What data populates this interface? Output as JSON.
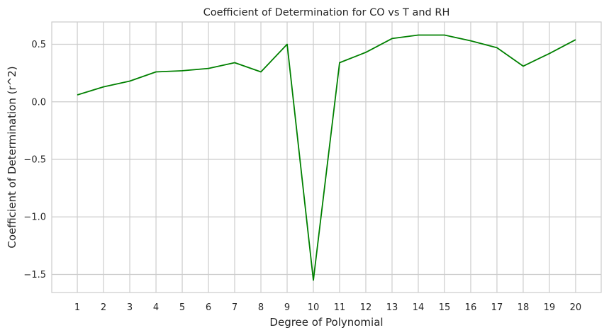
{
  "chart_data": {
    "type": "line",
    "title": "Coefficient of Determination for CO vs T and RH",
    "xlabel": "Degree of Polynomial",
    "ylabel": "Coefficient of Determination (r^2)",
    "x": [
      1,
      2,
      3,
      4,
      5,
      6,
      7,
      8,
      9,
      10,
      11,
      12,
      13,
      14,
      15,
      16,
      17,
      18,
      19,
      20
    ],
    "series": [
      {
        "values": [
          0.06,
          0.13,
          0.18,
          0.26,
          0.27,
          0.29,
          0.34,
          0.26,
          0.5,
          -1.55,
          0.34,
          0.43,
          0.55,
          0.58,
          0.58,
          0.53,
          0.47,
          0.31,
          0.42,
          0.54
        ],
        "color": "#008000"
      }
    ],
    "xticks": [
      "1",
      "2",
      "3",
      "4",
      "5",
      "6",
      "7",
      "8",
      "9",
      "10",
      "11",
      "12",
      "13",
      "14",
      "15",
      "16",
      "17",
      "18",
      "19",
      "20"
    ],
    "yticks": [
      {
        "value": 0.5,
        "label": "0.5"
      },
      {
        "value": 0.0,
        "label": "0.0"
      },
      {
        "value": -0.5,
        "label": "−0.5"
      },
      {
        "value": -1.0,
        "label": "−1.0"
      },
      {
        "value": -1.5,
        "label": "−1.5"
      }
    ],
    "xlim": [
      0.025,
      20.975
    ],
    "ylim": [
      -1.657,
      0.694
    ],
    "grid": true,
    "style": "whitegrid"
  }
}
